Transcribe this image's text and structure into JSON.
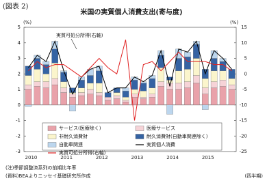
{
  "header": "(図表 2)",
  "chart_data": {
    "type": "bar",
    "title": "米国の実質個人消費支出(寄与度)",
    "y_label": "(%)",
    "y2_label": "(%)",
    "x_unit": "(四半期)",
    "annotation": "実質可処分所得(右軸)",
    "categories": [
      "2010",
      null,
      null,
      null,
      "2011",
      null,
      null,
      null,
      "2012",
      null,
      null,
      null,
      "2013",
      null,
      null,
      null,
      "2014",
      null,
      null,
      null,
      "2015",
      null,
      null,
      null
    ],
    "ylim": [
      -3,
      5
    ],
    "yticks": [
      -3,
      -2,
      -1,
      0,
      1,
      2,
      3,
      4,
      5
    ],
    "y2lim": [
      -25,
      15
    ],
    "y2ticks": [
      -25,
      -20,
      -15,
      -10,
      -5,
      0,
      5,
      10,
      15
    ],
    "series": [
      {
        "name": "サービス(医療除く)",
        "type": "bar",
        "color": "#e9a2aa",
        "values": [
          1.0,
          1.2,
          1.1,
          1.3,
          0.8,
          0.5,
          0.6,
          0.7,
          0.6,
          0.3,
          0.4,
          0.2,
          0.5,
          0.4,
          0.5,
          1.2,
          1.0,
          1.0,
          1.1,
          1.4,
          0.7,
          1.1,
          1.2,
          1.0
        ]
      },
      {
        "name": "医療サービス",
        "type": "bar",
        "color": "#f6d3d7",
        "values": [
          0.3,
          0.3,
          0.4,
          0.4,
          0.3,
          0.2,
          0.2,
          0.3,
          0.2,
          0.2,
          0.2,
          0.1,
          0.2,
          0.1,
          0.2,
          0.3,
          0.4,
          0.4,
          0.4,
          0.5,
          0.4,
          0.4,
          0.4,
          0.3
        ]
      },
      {
        "name": "非耐久消費財",
        "type": "bar",
        "color": "#fbf5cc",
        "values": [
          0.6,
          0.8,
          0.5,
          1.0,
          0.4,
          0.1,
          0.3,
          0.4,
          0.6,
          0.0,
          0.2,
          0.2,
          0.3,
          0.4,
          0.4,
          0.9,
          0.2,
          0.8,
          0.8,
          1.1,
          0.6,
          0.7,
          0.6,
          0.4
        ]
      },
      {
        "name": "耐久消費財(自動車関連除く)",
        "type": "bar",
        "color": "#3563a3",
        "values": [
          0.6,
          0.7,
          0.6,
          0.9,
          0.6,
          0.3,
          0.5,
          0.5,
          0.8,
          0.3,
          0.3,
          0.4,
          0.6,
          0.5,
          0.6,
          0.8,
          0.2,
          0.8,
          0.8,
          0.9,
          0.6,
          0.8,
          0.6,
          0.6
        ]
      },
      {
        "name": "自動車関連",
        "type": "bar",
        "color": "#bcd6ee",
        "values": [
          -0.1,
          0.2,
          0.2,
          0.5,
          0.1,
          -0.4,
          0.2,
          0.4,
          0.3,
          0.0,
          0.0,
          0.2,
          0.2,
          0.1,
          0.2,
          0.3,
          -0.6,
          0.6,
          0.3,
          0.2,
          -0.3,
          0.5,
          0.2,
          0.0
        ]
      },
      {
        "name": "実質個人消費",
        "type": "line",
        "color": "#000000",
        "values": [
          2.4,
          3.2,
          2.8,
          4.1,
          2.2,
          0.7,
          1.8,
          2.3,
          2.5,
          0.8,
          1.1,
          1.1,
          1.8,
          1.5,
          1.9,
          3.5,
          1.2,
          3.6,
          3.4,
          4.1,
          2.0,
          3.5,
          3.0,
          2.3
        ]
      },
      {
        "name": "実質可処分所得(右軸)",
        "type": "line",
        "axis": "y2",
        "color": "#e02020",
        "values": [
          1,
          4,
          2,
          3,
          3,
          1,
          -1,
          2,
          5,
          2,
          0,
          11,
          -15,
          3,
          4,
          1,
          4,
          7,
          4,
          4,
          4,
          3,
          3,
          1
        ]
      }
    ]
  },
  "notes": [
    "(注)季節調整済系列の前期比年率",
    "(資料)BEAよりニッセイ基礎研究所作成"
  ]
}
